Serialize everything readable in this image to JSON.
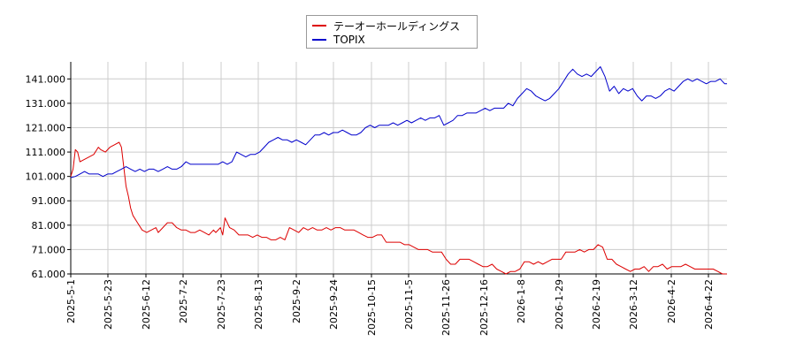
{
  "chart_data": {
    "type": "line",
    "title": "",
    "xlabel": "",
    "ylabel": "",
    "x_ticks": [
      "2025-5-1",
      "2025-5-23",
      "2025-6-12",
      "2025-7-2",
      "2025-7-23",
      "2025-8-13",
      "2025-9-2",
      "2025-9-24",
      "2025-10-15",
      "2025-11-5",
      "2025-11-26",
      "2025-12-16",
      "2026-1-8",
      "2026-1-29",
      "2026-2-19",
      "2026-3-12",
      "2026-4-2",
      "2026-4-22"
    ],
    "y_ticks": [
      "61.000",
      "71.000",
      "81.000",
      "91.000",
      "101.000",
      "111.000",
      "121.000",
      "131.000",
      "141.000"
    ],
    "ylim": [
      61,
      148
    ],
    "grid": true,
    "legend_position": "top-center",
    "series": [
      {
        "name": "テーオーホールディングス",
        "color": "#dd0000",
        "values": [
          [
            0,
            101.0
          ],
          [
            1,
            104
          ],
          [
            2,
            112
          ],
          [
            3,
            111
          ],
          [
            4,
            107
          ],
          [
            6,
            108
          ],
          [
            8,
            109
          ],
          [
            10,
            110
          ],
          [
            12,
            113
          ],
          [
            13,
            112
          ],
          [
            15,
            111
          ],
          [
            17,
            113
          ],
          [
            19,
            114
          ],
          [
            21,
            115
          ],
          [
            22,
            113
          ],
          [
            24,
            97
          ],
          [
            25,
            93
          ],
          [
            26,
            88
          ],
          [
            27,
            85
          ],
          [
            29,
            82
          ],
          [
            31,
            79
          ],
          [
            33,
            78
          ],
          [
            35,
            79
          ],
          [
            37,
            80
          ],
          [
            38,
            78
          ],
          [
            40,
            80
          ],
          [
            42,
            82
          ],
          [
            44,
            82
          ],
          [
            46,
            80
          ],
          [
            48,
            79
          ],
          [
            50,
            79
          ],
          [
            52,
            78
          ],
          [
            54,
            78
          ],
          [
            56,
            79
          ],
          [
            58,
            78
          ],
          [
            60,
            77
          ],
          [
            62,
            79
          ],
          [
            63,
            78
          ],
          [
            65,
            80
          ],
          [
            66,
            77
          ],
          [
            67,
            84
          ],
          [
            69,
            80
          ],
          [
            71,
            79
          ],
          [
            73,
            77
          ],
          [
            75,
            77
          ],
          [
            77,
            77
          ],
          [
            79,
            76
          ],
          [
            81,
            77
          ],
          [
            83,
            76
          ],
          [
            85,
            76
          ],
          [
            87,
            75
          ],
          [
            89,
            75
          ],
          [
            91,
            76
          ],
          [
            93,
            75
          ],
          [
            95,
            80
          ],
          [
            97,
            79
          ],
          [
            99,
            78
          ],
          [
            101,
            80
          ],
          [
            103,
            79
          ],
          [
            105,
            80
          ],
          [
            107,
            79
          ],
          [
            109,
            79
          ],
          [
            111,
            80
          ],
          [
            113,
            79
          ],
          [
            115,
            80
          ],
          [
            117,
            80
          ],
          [
            119,
            79
          ],
          [
            121,
            79
          ],
          [
            123,
            79
          ],
          [
            125,
            78
          ],
          [
            127,
            77
          ],
          [
            129,
            76
          ],
          [
            131,
            76
          ],
          [
            133,
            77
          ],
          [
            135,
            77
          ],
          [
            137,
            74
          ],
          [
            139,
            74
          ],
          [
            141,
            74
          ],
          [
            143,
            74
          ],
          [
            145,
            73
          ],
          [
            147,
            73
          ],
          [
            149,
            72
          ],
          [
            151,
            71
          ],
          [
            153,
            71
          ],
          [
            155,
            71
          ],
          [
            157,
            70
          ],
          [
            159,
            70
          ],
          [
            161,
            70
          ],
          [
            163,
            67
          ],
          [
            165,
            65
          ],
          [
            167,
            65
          ],
          [
            169,
            67
          ],
          [
            171,
            67
          ],
          [
            173,
            67
          ],
          [
            175,
            66
          ],
          [
            177,
            65
          ],
          [
            179,
            64
          ],
          [
            181,
            64
          ],
          [
            183,
            65
          ],
          [
            185,
            63
          ],
          [
            187,
            62
          ],
          [
            189,
            61
          ],
          [
            191,
            62
          ],
          [
            193,
            62
          ],
          [
            195,
            63
          ],
          [
            197,
            66
          ],
          [
            199,
            66
          ],
          [
            201,
            65
          ],
          [
            203,
            66
          ],
          [
            205,
            65
          ],
          [
            207,
            66
          ],
          [
            209,
            67
          ],
          [
            211,
            67
          ],
          [
            213,
            67
          ],
          [
            215,
            70
          ],
          [
            217,
            70
          ],
          [
            219,
            70
          ],
          [
            221,
            71
          ],
          [
            223,
            70
          ],
          [
            225,
            71
          ],
          [
            227,
            71
          ],
          [
            229,
            73
          ],
          [
            231,
            72
          ],
          [
            233,
            67
          ],
          [
            235,
            67
          ],
          [
            237,
            65
          ],
          [
            239,
            64
          ],
          [
            241,
            63
          ],
          [
            243,
            62
          ],
          [
            245,
            63
          ],
          [
            247,
            63
          ],
          [
            249,
            64
          ],
          [
            251,
            62
          ],
          [
            253,
            64
          ],
          [
            255,
            64
          ],
          [
            257,
            65
          ],
          [
            259,
            63
          ],
          [
            261,
            64
          ],
          [
            263,
            64
          ],
          [
            265,
            64
          ],
          [
            267,
            65
          ],
          [
            269,
            64
          ],
          [
            271,
            63
          ],
          [
            273,
            63
          ],
          [
            275,
            63
          ],
          [
            277,
            63
          ],
          [
            279,
            63
          ],
          [
            281,
            62
          ],
          [
            283,
            61
          ],
          [
            285,
            61
          ]
        ]
      },
      {
        "name": "TOPIX",
        "color": "#0000cc",
        "values": [
          [
            0,
            100.5
          ],
          [
            2,
            101
          ],
          [
            4,
            102
          ],
          [
            6,
            103
          ],
          [
            8,
            102
          ],
          [
            10,
            102
          ],
          [
            12,
            102
          ],
          [
            14,
            101
          ],
          [
            16,
            102
          ],
          [
            18,
            102
          ],
          [
            20,
            103
          ],
          [
            22,
            104
          ],
          [
            24,
            105
          ],
          [
            26,
            104
          ],
          [
            28,
            103
          ],
          [
            30,
            104
          ],
          [
            32,
            103
          ],
          [
            34,
            104
          ],
          [
            36,
            104
          ],
          [
            38,
            103
          ],
          [
            40,
            104
          ],
          [
            42,
            105
          ],
          [
            44,
            104
          ],
          [
            46,
            104
          ],
          [
            48,
            105
          ],
          [
            50,
            107
          ],
          [
            52,
            106
          ],
          [
            54,
            106
          ],
          [
            56,
            106
          ],
          [
            58,
            106
          ],
          [
            60,
            106
          ],
          [
            62,
            106
          ],
          [
            64,
            106
          ],
          [
            66,
            107
          ],
          [
            68,
            106
          ],
          [
            70,
            107
          ],
          [
            72,
            111
          ],
          [
            74,
            110
          ],
          [
            76,
            109
          ],
          [
            78,
            110
          ],
          [
            80,
            110
          ],
          [
            82,
            111
          ],
          [
            84,
            113
          ],
          [
            86,
            115
          ],
          [
            88,
            116
          ],
          [
            90,
            117
          ],
          [
            92,
            116
          ],
          [
            94,
            116
          ],
          [
            96,
            115
          ],
          [
            98,
            116
          ],
          [
            100,
            115
          ],
          [
            102,
            114
          ],
          [
            104,
            116
          ],
          [
            106,
            118
          ],
          [
            108,
            118
          ],
          [
            110,
            119
          ],
          [
            112,
            118
          ],
          [
            114,
            119
          ],
          [
            116,
            119
          ],
          [
            118,
            120
          ],
          [
            120,
            119
          ],
          [
            122,
            118
          ],
          [
            124,
            118
          ],
          [
            126,
            119
          ],
          [
            128,
            121
          ],
          [
            130,
            122
          ],
          [
            132,
            121
          ],
          [
            134,
            122
          ],
          [
            136,
            122
          ],
          [
            138,
            122
          ],
          [
            140,
            123
          ],
          [
            142,
            122
          ],
          [
            144,
            123
          ],
          [
            146,
            124
          ],
          [
            148,
            123
          ],
          [
            150,
            124
          ],
          [
            152,
            125
          ],
          [
            154,
            124
          ],
          [
            156,
            125
          ],
          [
            158,
            125
          ],
          [
            160,
            126
          ],
          [
            162,
            122
          ],
          [
            164,
            123
          ],
          [
            166,
            124
          ],
          [
            168,
            126
          ],
          [
            170,
            126
          ],
          [
            172,
            127
          ],
          [
            174,
            127
          ],
          [
            176,
            127
          ],
          [
            178,
            128
          ],
          [
            180,
            129
          ],
          [
            182,
            128
          ],
          [
            184,
            129
          ],
          [
            186,
            129
          ],
          [
            188,
            129
          ],
          [
            190,
            131
          ],
          [
            192,
            130
          ],
          [
            194,
            133
          ],
          [
            196,
            135
          ],
          [
            198,
            137
          ],
          [
            200,
            136
          ],
          [
            202,
            134
          ],
          [
            204,
            133
          ],
          [
            206,
            132
          ],
          [
            208,
            133
          ],
          [
            210,
            135
          ],
          [
            212,
            137
          ],
          [
            214,
            140
          ],
          [
            216,
            143
          ],
          [
            218,
            145
          ],
          [
            220,
            143
          ],
          [
            222,
            142
          ],
          [
            224,
            143
          ],
          [
            226,
            142
          ],
          [
            228,
            144
          ],
          [
            230,
            146
          ],
          [
            232,
            142
          ],
          [
            234,
            136
          ],
          [
            236,
            138
          ],
          [
            238,
            135
          ],
          [
            240,
            137
          ],
          [
            242,
            136
          ],
          [
            244,
            137
          ],
          [
            246,
            134
          ],
          [
            248,
            132
          ],
          [
            250,
            134
          ],
          [
            252,
            134
          ],
          [
            254,
            133
          ],
          [
            256,
            134
          ],
          [
            258,
            136
          ],
          [
            260,
            137
          ],
          [
            262,
            136
          ],
          [
            264,
            138
          ],
          [
            266,
            140
          ],
          [
            268,
            141
          ],
          [
            270,
            140
          ],
          [
            272,
            141
          ],
          [
            274,
            140
          ],
          [
            276,
            139
          ],
          [
            278,
            140
          ],
          [
            280,
            140
          ],
          [
            282,
            141
          ],
          [
            284,
            139
          ],
          [
            285,
            139
          ]
        ]
      }
    ]
  }
}
